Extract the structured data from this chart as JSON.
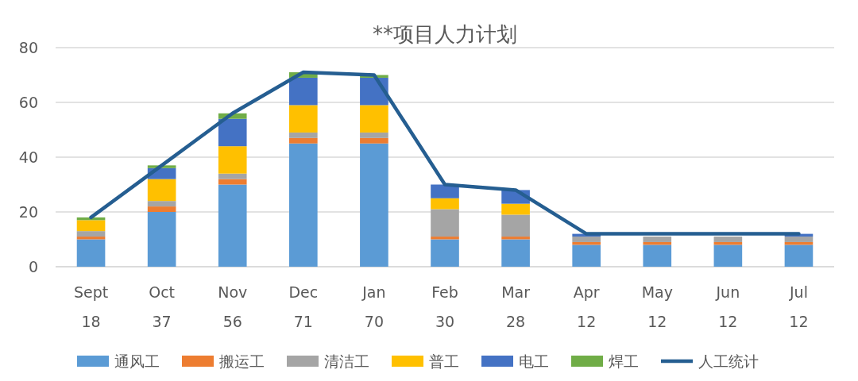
{
  "chart_data": {
    "type": "bar",
    "title": "**项目人力计划",
    "stacked": true,
    "categories": [
      "Sept",
      "Oct",
      "Nov",
      "Dec",
      "Jan",
      "Feb",
      "Mar",
      "Apr",
      "May",
      "Jun",
      "Jul"
    ],
    "series": [
      {
        "name": "通风工",
        "color": "#5b9bd5",
        "values": [
          10,
          20,
          30,
          45,
          45,
          10,
          10,
          8,
          8,
          8,
          8
        ]
      },
      {
        "name": "搬运工",
        "color": "#ed7d31",
        "values": [
          1,
          2,
          2,
          2,
          2,
          1,
          1,
          1,
          1,
          1,
          1
        ]
      },
      {
        "name": "清洁工",
        "color": "#a5a5a5",
        "values": [
          2,
          2,
          2,
          2,
          2,
          10,
          8,
          2,
          2,
          2,
          2
        ]
      },
      {
        "name": "普工",
        "color": "#ffc000",
        "values": [
          4,
          8,
          10,
          10,
          10,
          4,
          4,
          0,
          0,
          0,
          0
        ]
      },
      {
        "name": "电工",
        "color": "#4472c4",
        "values": [
          0,
          4,
          10,
          10,
          10,
          5,
          5,
          1,
          null,
          null,
          1
        ]
      },
      {
        "name": "焊工",
        "color": "#70ad47",
        "values": [
          1,
          1,
          2,
          2,
          1,
          0,
          0,
          0,
          0,
          0,
          0
        ]
      },
      {
        "name": "人工统计",
        "type": "line",
        "color": "#255e91",
        "values": [
          18,
          37,
          56,
          71,
          70,
          30,
          28,
          12,
          12,
          12,
          12
        ],
        "value_labels": [
          "18",
          "37",
          "56",
          "71",
          "70",
          "30",
          "28",
          "12",
          "12",
          "12",
          "12"
        ]
      }
    ],
    "ylim": [
      0,
      80
    ],
    "yticks": [
      0,
      20,
      40,
      60,
      80
    ],
    "grid": "y",
    "legend": "bottom",
    "marker": "none",
    "line_style": "solid"
  }
}
